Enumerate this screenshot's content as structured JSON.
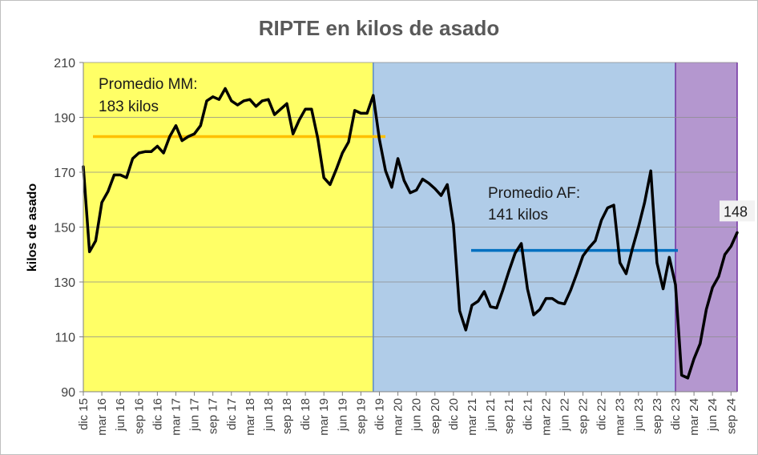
{
  "chart_data": {
    "type": "line",
    "title": "RIPTE en kilos de asado",
    "xlabel": "",
    "ylabel": "kilos de asado",
    "ylim": [
      90,
      210
    ],
    "yticks": [
      90,
      110,
      130,
      150,
      170,
      190,
      210
    ],
    "grid": "horizontal",
    "x_tick_labels": [
      "dic 15",
      "mar 16",
      "jun 16",
      "sep 16",
      "dic 16",
      "mar 17",
      "jun 17",
      "sep 17",
      "dic 17",
      "mar 18",
      "jun 18",
      "sep 18",
      "dic 18",
      "mar 19",
      "jun 19",
      "sep 19",
      "dic 19",
      "mar 20",
      "jun 20",
      "sep 20",
      "dic 20",
      "mar 21",
      "jun 21",
      "sep 21",
      "dic 21",
      "mar 22",
      "jun 22",
      "sep 22",
      "dic 22",
      "mar 23",
      "jun 23",
      "sep 23",
      "dic 23",
      "mar 24",
      "jun 24",
      "sep 24"
    ],
    "x_start": "dic 15",
    "x_end": "oct 24",
    "series": [
      {
        "name": "",
        "color": "#000000",
        "values": [
          172,
          141,
          145,
          159,
          163,
          169,
          169,
          168,
          175,
          177,
          177.5,
          177.5,
          179.5,
          177,
          183,
          187,
          181.5,
          183,
          184,
          187,
          196,
          197.5,
          196.5,
          200.5,
          196,
          194.5,
          196,
          196.5,
          194,
          196,
          196.5,
          191,
          193,
          195,
          184,
          189,
          193,
          193,
          182.5,
          168,
          165.5,
          171,
          177,
          181,
          192.5,
          191.5,
          191.5,
          198,
          182,
          170.5,
          164.5,
          175,
          167,
          162.5,
          163.5,
          167.5,
          166,
          164,
          161.5,
          165.5,
          151,
          119.5,
          112.5,
          121.5,
          123,
          126.5,
          121,
          120.5,
          127,
          134,
          140.5,
          144,
          127.5,
          118,
          120,
          124,
          124,
          122.5,
          122,
          127,
          133,
          139.5,
          142.5,
          145,
          152.5,
          157,
          158,
          137,
          133,
          142,
          150,
          159,
          170.5,
          137,
          127.5,
          139,
          129,
          96,
          95,
          102,
          107.5,
          120,
          128,
          132,
          140,
          143,
          148
        ]
      }
    ],
    "regions": [
      {
        "from": "dic 15",
        "to": "nov 19",
        "color": "#ffff66",
        "label": "Promedio MM:",
        "value_label": "183 kilos",
        "average": 183,
        "line_color": "#ffc000"
      },
      {
        "from": "nov 19",
        "to": "dic 23",
        "color": "#b0cce8",
        "label": "Promedio AF:",
        "value_label": "141 kilos",
        "average": 141.5,
        "line_color": "#0070c0"
      },
      {
        "from": "dic 23",
        "to": "oct 24",
        "color": "#b497cf"
      }
    ],
    "annotations": [
      {
        "text": "148",
        "at": "oct 24",
        "y": 148
      }
    ]
  }
}
